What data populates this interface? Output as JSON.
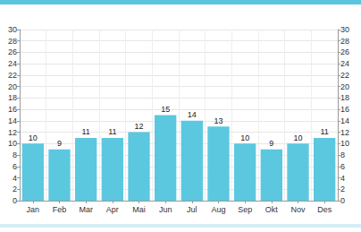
{
  "chart_data": {
    "type": "bar",
    "categories": [
      "Jan",
      "Feb",
      "Mar",
      "Apr",
      "Mai",
      "Jun",
      "Jul",
      "Aug",
      "Sep",
      "Okt",
      "Nov",
      "Des"
    ],
    "values": [
      10,
      9,
      11,
      11,
      12,
      15,
      14,
      13,
      10,
      9,
      10,
      11
    ],
    "color": "#5bc8e0",
    "ylim": [
      0,
      30
    ],
    "yticks": [
      0,
      2,
      4,
      6,
      8,
      10,
      12,
      14,
      16,
      18,
      20,
      22,
      24,
      26,
      28,
      30
    ],
    "grid": true,
    "data_labels": true
  }
}
